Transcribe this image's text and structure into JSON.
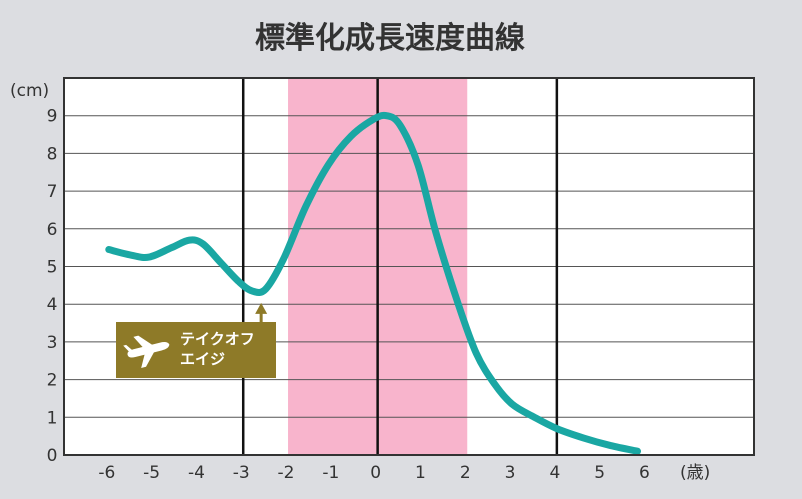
{
  "chart_data": {
    "type": "line",
    "title": "標準化成長速度曲線",
    "y_unit_label": "(cm)",
    "x_unit_label": "(歳)",
    "xlim": [
      -7,
      8.4
    ],
    "ylim": [
      0,
      10
    ],
    "x_ticks": [
      "-6",
      "-5",
      "-4",
      "-3",
      "-2",
      "-1",
      "0",
      "1",
      "2",
      "3",
      "4",
      "5",
      "6"
    ],
    "y_ticks": [
      "0",
      "1",
      "2",
      "3",
      "4",
      "5",
      "6",
      "7",
      "8",
      "9"
    ],
    "grid": "horizontal",
    "highlight_band": {
      "from": -2,
      "to": 2,
      "color": "#f8b4cc"
    },
    "reference_lines": [
      -3,
      0,
      4
    ],
    "series": [
      {
        "color": "#1aa7a3",
        "points": [
          [
            -6.0,
            5.45
          ],
          [
            -5.5,
            5.3
          ],
          [
            -5.1,
            5.25
          ],
          [
            -4.6,
            5.5
          ],
          [
            -4.2,
            5.7
          ],
          [
            -3.9,
            5.6
          ],
          [
            -3.5,
            5.1
          ],
          [
            -3.1,
            4.6
          ],
          [
            -2.8,
            4.35
          ],
          [
            -2.5,
            4.4
          ],
          [
            -2.1,
            5.2
          ],
          [
            -1.6,
            6.6
          ],
          [
            -1.1,
            7.7
          ],
          [
            -0.6,
            8.45
          ],
          [
            -0.1,
            8.9
          ],
          [
            0.2,
            9.0
          ],
          [
            0.5,
            8.75
          ],
          [
            0.9,
            7.7
          ],
          [
            1.3,
            5.9
          ],
          [
            1.8,
            4.0
          ],
          [
            2.2,
            2.7
          ],
          [
            2.6,
            1.9
          ],
          [
            3.0,
            1.35
          ],
          [
            3.5,
            1.0
          ],
          [
            4.0,
            0.7
          ],
          [
            4.6,
            0.45
          ],
          [
            5.2,
            0.25
          ],
          [
            5.8,
            0.1
          ]
        ]
      }
    ],
    "annotation": {
      "lines": [
        "テイクオフ",
        "エイジ"
      ],
      "x": -2.6,
      "y": 4.3,
      "color": "#8e7a28",
      "icon": "airplane-icon"
    }
  }
}
